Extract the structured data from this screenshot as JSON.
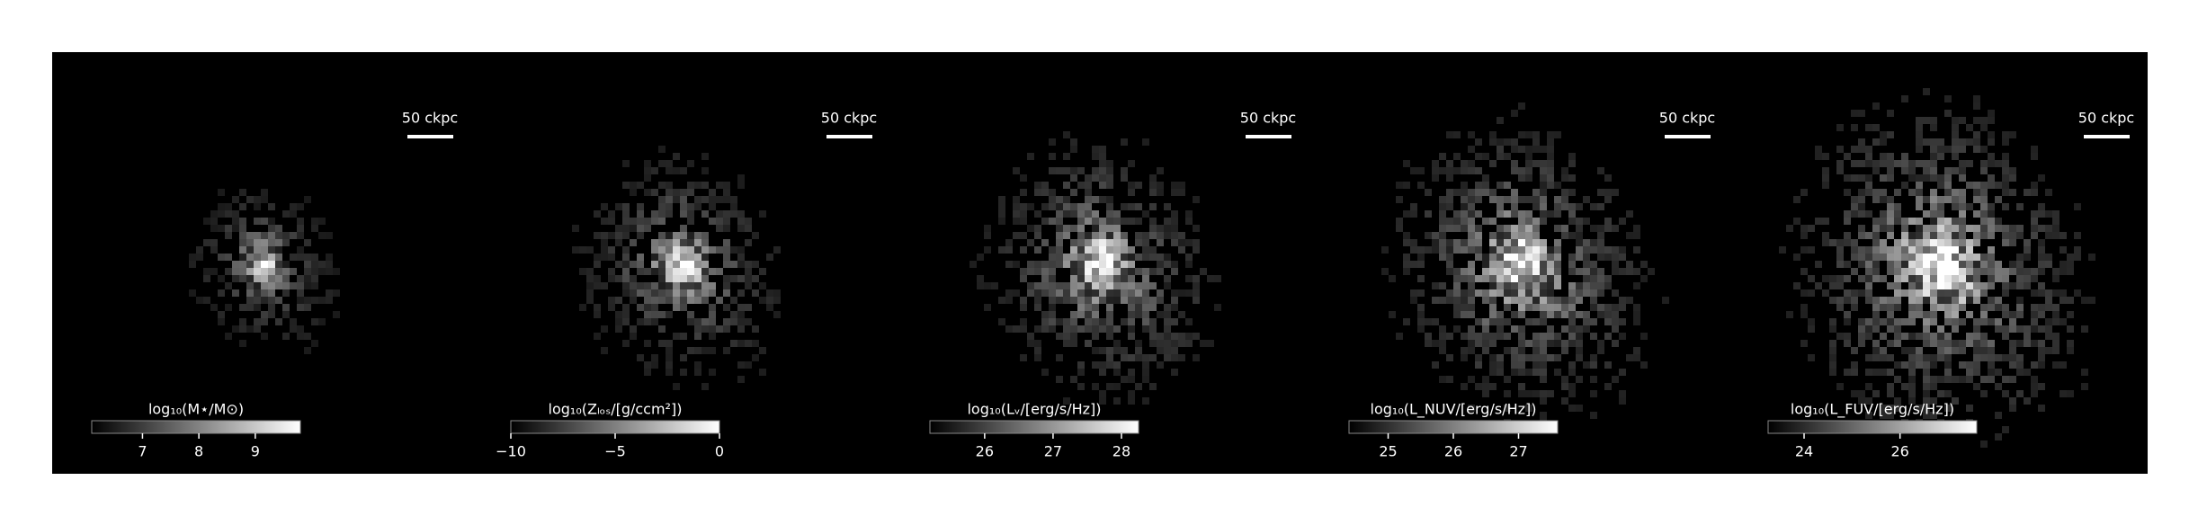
{
  "chart_data": [
    {
      "type": "image",
      "colormap": "gray",
      "colorbar_label": "log₁₀(M⋆/M⊙)",
      "clim": [
        6.1,
        9.8
      ],
      "cticks": [
        7,
        8,
        9
      ],
      "scale_bar": "50 ckpc"
    },
    {
      "type": "image",
      "colormap": "gray",
      "colorbar_label": "log₁₀(Zₗₒₛ/[g/ccm²])",
      "clim": [
        -10,
        0
      ],
      "cticks": [
        {
          "value": -10,
          "label": "−10"
        },
        {
          "value": -5,
          "label": "−5"
        },
        0
      ],
      "scale_bar": "50 ckpc"
    },
    {
      "type": "image",
      "colormap": "gray",
      "colorbar_label": "log₁₀(Lᵥ/[erg/s/Hz])",
      "clim": [
        25.2,
        28.25
      ],
      "cticks": [
        26,
        27,
        28
      ],
      "scale_bar": "50 ckpc"
    },
    {
      "type": "image",
      "colormap": "gray",
      "colorbar_label": "log₁₀(L_NUV/[erg/s/Hz])",
      "clim": [
        24.4,
        27.6
      ],
      "cticks": [
        25,
        26,
        27
      ],
      "scale_bar": "50 ckpc"
    },
    {
      "type": "image",
      "colormap": "gray",
      "colorbar_label": "log₁₀(L_FUV/[erg/s/Hz])",
      "clim": [
        23.25,
        27.6
      ],
      "cticks": [
        24,
        26
      ],
      "scale_bar": "50 ckpc"
    }
  ]
}
